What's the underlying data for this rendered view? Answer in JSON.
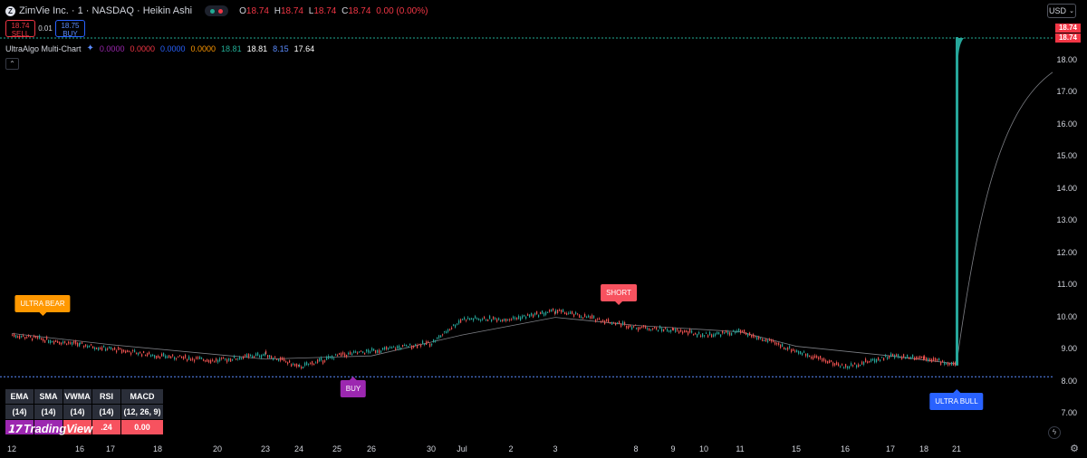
{
  "header": {
    "symbol_logo": "Z",
    "title": "ZimVie Inc. · 1 · NASDAQ · Heikin Ashi",
    "ohlc": [
      {
        "key": "O",
        "value": "18.74"
      },
      {
        "key": "H",
        "value": "18.74"
      },
      {
        "key": "L",
        "value": "18.74"
      },
      {
        "key": "C",
        "value": "18.74"
      }
    ],
    "change": "0.00 (0.00%)"
  },
  "trade": {
    "sell_price": "18.74",
    "sell_label": "SELL",
    "spread": "0.01",
    "buy_price": "18.75",
    "buy_label": "BUY"
  },
  "indicator": {
    "name": "UltraAlgo Multi-Chart",
    "values": [
      {
        "text": "0.0000",
        "color": "#9c27b0"
      },
      {
        "text": "0.0000",
        "color": "#f23645"
      },
      {
        "text": "0.0000",
        "color": "#2962ff"
      },
      {
        "text": "0.0000",
        "color": "#ff9800"
      },
      {
        "text": "18.81",
        "color": "#22ab94"
      },
      {
        "text": "18.81",
        "color": "#ffffff"
      },
      {
        "text": "8.15",
        "color": "#5b8cff"
      },
      {
        "text": "17.64",
        "color": "#ffffff"
      }
    ]
  },
  "currency": "USD",
  "price_labels": [
    "18.74",
    "18.74"
  ],
  "table": {
    "headers": [
      "EMA",
      "SMA",
      "VWMA",
      "RSI",
      "MACD"
    ],
    "params": [
      "(14)",
      "(14)",
      "(14)",
      "(14)",
      "(12, 26, 9)"
    ],
    "values": [
      "",
      "",
      "",
      ".24",
      "0.00"
    ]
  },
  "brand": "TradingView",
  "signals": {
    "ultra_bear": "ULTRA BEAR",
    "short": "SHORT",
    "buy": "BUY",
    "ultra_bull": "ULTRA BULL"
  },
  "colors": {
    "up": "#26a69a",
    "down": "#ef5350",
    "ma": "#b2b5be",
    "background": "#000000"
  },
  "chart_data": {
    "type": "candlestick",
    "chart_style": "Heikin Ashi",
    "y_ticks": [
      "7.00",
      "8.00",
      "9.00",
      "10.00",
      "11.00",
      "12.00",
      "13.00",
      "14.00",
      "15.00",
      "16.00",
      "17.00",
      "18.00"
    ],
    "ylim": [
      6.3,
      19.0
    ],
    "x_ticks": [
      "12",
      "16",
      "17",
      "18",
      "20",
      "23",
      "24",
      "25",
      "26",
      "30",
      "Jul",
      "2",
      "3",
      "8",
      "9",
      "10",
      "11",
      "15",
      "16",
      "17",
      "18",
      "21"
    ],
    "price_path": [
      {
        "x": "12",
        "y": 9.45
      },
      {
        "x": "16",
        "y": 9.15
      },
      {
        "x": "18",
        "y": 8.8
      },
      {
        "x": "20",
        "y": 8.65
      },
      {
        "x": "23",
        "y": 8.85
      },
      {
        "x": "24",
        "y": 8.45
      },
      {
        "x": "25",
        "y": 8.8
      },
      {
        "x": "26",
        "y": 8.95
      },
      {
        "x": "30",
        "y": 9.2
      },
      {
        "x": "Jul",
        "y": 9.95
      },
      {
        "x": "2",
        "y": 9.95
      },
      {
        "x": "3",
        "y": 10.2
      },
      {
        "x": "8",
        "y": 9.7
      },
      {
        "x": "9",
        "y": 9.6
      },
      {
        "x": "10",
        "y": 9.45
      },
      {
        "x": "11",
        "y": 9.55
      },
      {
        "x": "15",
        "y": 8.95
      },
      {
        "x": "16",
        "y": 8.45
      },
      {
        "x": "17",
        "y": 8.8
      },
      {
        "x": "18",
        "y": 8.75
      },
      {
        "x": "21",
        "y": 8.5
      },
      {
        "x": "21",
        "y": 18.74
      }
    ],
    "moving_average": [
      {
        "x": "12",
        "y": 9.5
      },
      {
        "x": "17",
        "y": 9.15
      },
      {
        "x": "23",
        "y": 8.7
      },
      {
        "x": "26",
        "y": 8.8
      },
      {
        "x": "Jul",
        "y": 9.45
      },
      {
        "x": "3",
        "y": 10.0
      },
      {
        "x": "8",
        "y": 9.75
      },
      {
        "x": "11",
        "y": 9.55
      },
      {
        "x": "15",
        "y": 9.1
      },
      {
        "x": "17",
        "y": 8.8
      },
      {
        "x": "21",
        "y": 8.55
      },
      {
        "x": "21",
        "y": 17.64
      }
    ],
    "reference_lines": [
      {
        "y": 8.15,
        "color": "#5b8cff"
      },
      {
        "y": 18.74,
        "color": "#22ab94"
      }
    ],
    "signals": [
      {
        "label": "ULTRA BEAR",
        "x": "12"
      },
      {
        "label": "BUY",
        "x": "25"
      },
      {
        "label": "SHORT",
        "x": "3"
      },
      {
        "label": "ULTRA BULL",
        "x": "21"
      }
    ]
  }
}
